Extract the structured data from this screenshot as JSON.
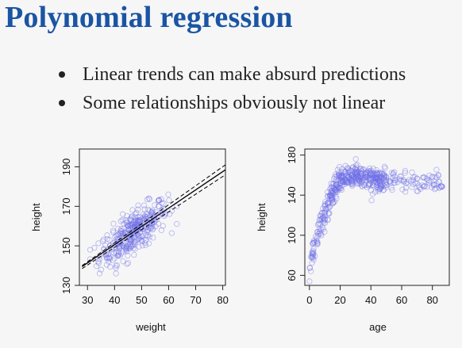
{
  "slide": {
    "title": "Polynomial regression",
    "bullets": [
      "Linear trends can make absurd predictions",
      "Some relationships obviously not linear"
    ]
  },
  "colors": {
    "title": "#1a55a4",
    "points": "#6f6fe6",
    "fit": "#000000"
  },
  "chart_data": [
    {
      "type": "scatter",
      "title": "",
      "xlabel": "weight",
      "ylabel": "height",
      "xlim": [
        27,
        81
      ],
      "ylim": [
        130,
        199
      ],
      "xticks": [
        30,
        40,
        50,
        60,
        70,
        80
      ],
      "yticks": [
        130,
        150,
        170,
        190
      ],
      "grid": false,
      "marker": "open-circle",
      "points_description": "approx. 350 points; weight 31-63, height 136-176, strong positive linear relation",
      "fit_line": {
        "style": "solid",
        "x": [
          28,
          81
        ],
        "y": [
          139.5,
          188.5
        ]
      },
      "fit_interval": [
        {
          "style": "dashed",
          "x": [
            28,
            81
          ],
          "y": [
            140.0,
            191.0
          ]
        },
        {
          "style": "dashed",
          "x": [
            28,
            81
          ],
          "y": [
            138.5,
            186.0
          ]
        }
      ]
    },
    {
      "type": "scatter",
      "title": "",
      "xlabel": "age",
      "ylabel": "height",
      "xlim": [
        -3,
        91
      ],
      "ylim": [
        50,
        186
      ],
      "xticks": [
        0,
        20,
        40,
        60,
        80
      ],
      "yticks": [
        60,
        100,
        140,
        180
      ],
      "grid": false,
      "marker": "open-circle",
      "points_description": "approx. 540 points; height rises steeply from ~55 at age 0 to ~150 by age 20, then plateaus around 150-165 to age 88",
      "trend": {
        "x": [
          0,
          2,
          5,
          8,
          11,
          14,
          17,
          20,
          25,
          30,
          40,
          50,
          60,
          70,
          80,
          88
        ],
        "y": [
          62,
          80,
          100,
          114,
          126,
          138,
          148,
          155,
          157,
          158,
          157,
          155,
          153,
          152,
          152,
          152
        ]
      }
    }
  ]
}
